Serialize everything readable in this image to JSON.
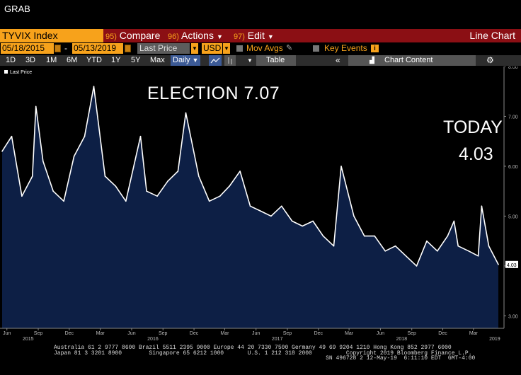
{
  "window": {
    "title": "GRAB"
  },
  "toolbar": {
    "ticker": "TYVIX Index",
    "compare_num": "95)",
    "compare_label": "Compare",
    "actions_num": "96)",
    "actions_label": "Actions",
    "edit_num": "97)",
    "edit_label": "Edit",
    "chart_type": "Line Chart"
  },
  "controls": {
    "start_date": "05/18/2015",
    "separator": "-",
    "end_date": "05/13/2019",
    "field": "Last Price",
    "currency": "USD",
    "mov_avgs": "Mov Avgs",
    "key_events": "Key Events"
  },
  "periods": {
    "items": [
      "1D",
      "3D",
      "1M",
      "6M",
      "YTD",
      "1Y",
      "5Y",
      "Max"
    ],
    "frequency": "Daily",
    "table": "Table",
    "chart_content": "Chart Content"
  },
  "annotations": {
    "election": "ELECTION 7.07",
    "today_label": "TODAY",
    "today_value": "4.03"
  },
  "footer": {
    "line1": "Australia 61 2 9777 8600 Brazil 5511 2395 9000 Europe 44 20 7330 7500 Germany 49 69 9204 1210 Hong Kong 852 2977 6000",
    "line2": "Japan 81 3 3201 8900        Singapore 65 6212 1000       U.S. 1 212 318 2000          Copyright 2019 Bloomberg Finance L.P.",
    "line3": "                                                                                SN 496728 2 12-May-19  6:11:10 EDT  GMT-4:00"
  },
  "colors": {
    "accent": "#f7a21b",
    "bar": "#8b0f14",
    "fill": "#0d1f45",
    "line": "#ffffff"
  },
  "chart_data": {
    "type": "area",
    "series": [
      {
        "name": "Last Price",
        "x": [
          "2015-05-18",
          "2015-06-15",
          "2015-07-15",
          "2015-08-15",
          "2015-08-25",
          "2015-09-15",
          "2015-10-15",
          "2015-11-15",
          "2015-12-15",
          "2016-01-15",
          "2016-02-11",
          "2016-03-15",
          "2016-04-15",
          "2016-05-15",
          "2016-06-27",
          "2016-07-15",
          "2016-08-15",
          "2016-09-15",
          "2016-10-15",
          "2016-11-07",
          "2016-12-15",
          "2017-01-15",
          "2017-02-15",
          "2017-03-15",
          "2017-04-15",
          "2017-05-15",
          "2017-06-15",
          "2017-07-15",
          "2017-08-15",
          "2017-09-15",
          "2017-10-15",
          "2017-11-15",
          "2017-12-15",
          "2018-01-15",
          "2018-02-06",
          "2018-03-15",
          "2018-04-15",
          "2018-05-15",
          "2018-06-15",
          "2018-07-15",
          "2018-08-15",
          "2018-09-15",
          "2018-10-15",
          "2018-11-15",
          "2018-12-15",
          "2019-01-03",
          "2019-01-15",
          "2019-02-15",
          "2019-03-15",
          "2019-03-25",
          "2019-04-15",
          "2019-05-13"
        ],
        "values": [
          6.3,
          6.6,
          5.4,
          5.8,
          7.2,
          6.1,
          5.5,
          5.3,
          6.2,
          6.6,
          7.6,
          5.8,
          5.6,
          5.3,
          6.6,
          5.5,
          5.4,
          5.7,
          5.9,
          7.07,
          5.8,
          5.3,
          5.4,
          5.6,
          5.9,
          5.2,
          5.1,
          5.0,
          5.2,
          4.9,
          4.8,
          4.9,
          4.6,
          4.4,
          6.0,
          5.0,
          4.6,
          4.6,
          4.3,
          4.4,
          4.2,
          4.0,
          4.5,
          4.3,
          4.6,
          4.9,
          4.4,
          4.3,
          4.2,
          5.2,
          4.4,
          4.03
        ]
      }
    ],
    "xlabel": "",
    "ylabel": "",
    "x_ticks": [
      {
        "date": "2015-06-01",
        "label": "Jun",
        "year": "2015"
      },
      {
        "date": "2015-09-01",
        "label": "Sep"
      },
      {
        "date": "2015-12-01",
        "label": "Dec"
      },
      {
        "date": "2016-03-01",
        "label": "Mar"
      },
      {
        "date": "2016-06-01",
        "label": "Jun",
        "year": "2016"
      },
      {
        "date": "2016-09-01",
        "label": "Sep"
      },
      {
        "date": "2016-12-01",
        "label": "Dec"
      },
      {
        "date": "2017-03-01",
        "label": "Mar"
      },
      {
        "date": "2017-06-01",
        "label": "Jun",
        "year": "2017"
      },
      {
        "date": "2017-09-01",
        "label": "Sep"
      },
      {
        "date": "2017-12-01",
        "label": "Dec"
      },
      {
        "date": "2018-03-01",
        "label": "Mar"
      },
      {
        "date": "2018-06-01",
        "label": "Jun",
        "year": "2018"
      },
      {
        "date": "2018-09-01",
        "label": "Sep"
      },
      {
        "date": "2018-12-01",
        "label": "Dec"
      },
      {
        "date": "2019-03-01",
        "label": "Mar",
        "year": "2019"
      }
    ],
    "y_ticks": [
      "3.00",
      "4.00",
      "5.00",
      "6.00",
      "7.00",
      "8.00"
    ],
    "ylim": [
      2.75,
      8.0
    ],
    "last_value_label": "4.03",
    "grid": false,
    "legend": "top-left"
  }
}
